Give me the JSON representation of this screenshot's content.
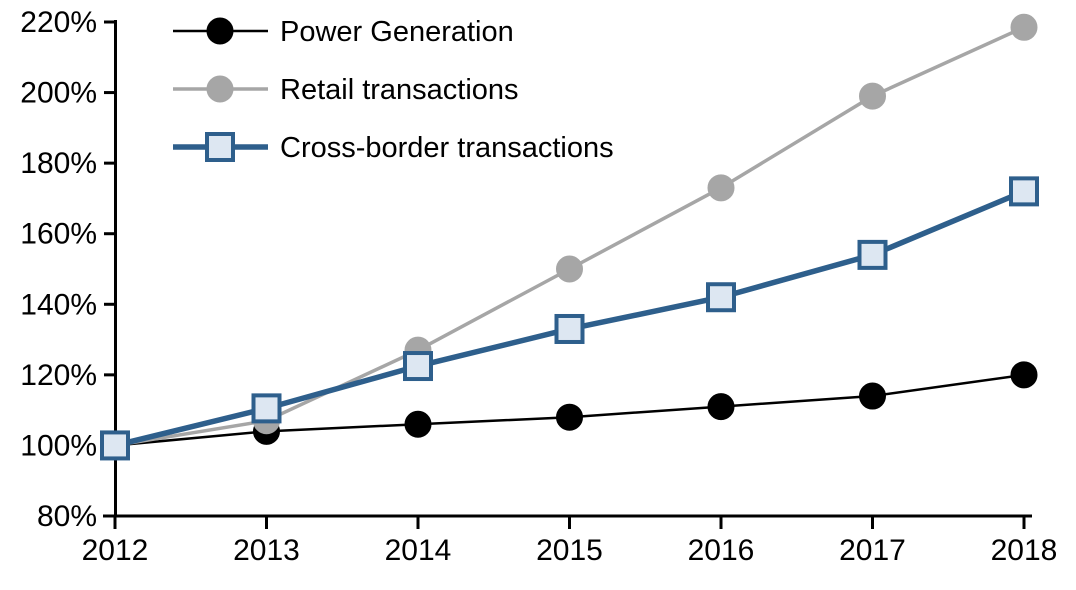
{
  "chart_data": {
    "type": "line",
    "title": "",
    "xlabel": "",
    "ylabel": "",
    "categories": [
      "2012",
      "2013",
      "2014",
      "2015",
      "2016",
      "2017",
      "2018"
    ],
    "y_ticks": [
      "220%",
      "200%",
      "180%",
      "160%",
      "140%",
      "120%",
      "100%",
      "80%"
    ],
    "y_tick_values": [
      220,
      200,
      180,
      160,
      140,
      120,
      100,
      80
    ],
    "ylim": [
      80,
      220
    ],
    "y_unit": "%",
    "grid": false,
    "legend_position": "top-left-inside",
    "series": [
      {
        "name": "Power Generation",
        "marker": "circle",
        "line_color": "#000000",
        "marker_fill": "#000000",
        "marker_stroke": "#000000",
        "line_width": 2.5,
        "values": [
          100,
          104,
          106,
          108,
          111,
          114,
          120
        ]
      },
      {
        "name": "Retail transactions",
        "marker": "circle",
        "line_color": "#A6A6A6",
        "marker_fill": "#A6A6A6",
        "marker_stroke": "#A6A6A6",
        "line_width": 3.5,
        "values": [
          100,
          107,
          127,
          150,
          173,
          199,
          218.5
        ]
      },
      {
        "name": "Cross-border transactions",
        "marker": "square",
        "line_color": "#2E5F8C",
        "marker_fill": "#DDE7F2",
        "marker_stroke": "#2E5F8C",
        "line_width": 5.5,
        "values": [
          100,
          110.5,
          122.5,
          133,
          142,
          154,
          172
        ]
      }
    ],
    "axis_color": "#000000"
  }
}
